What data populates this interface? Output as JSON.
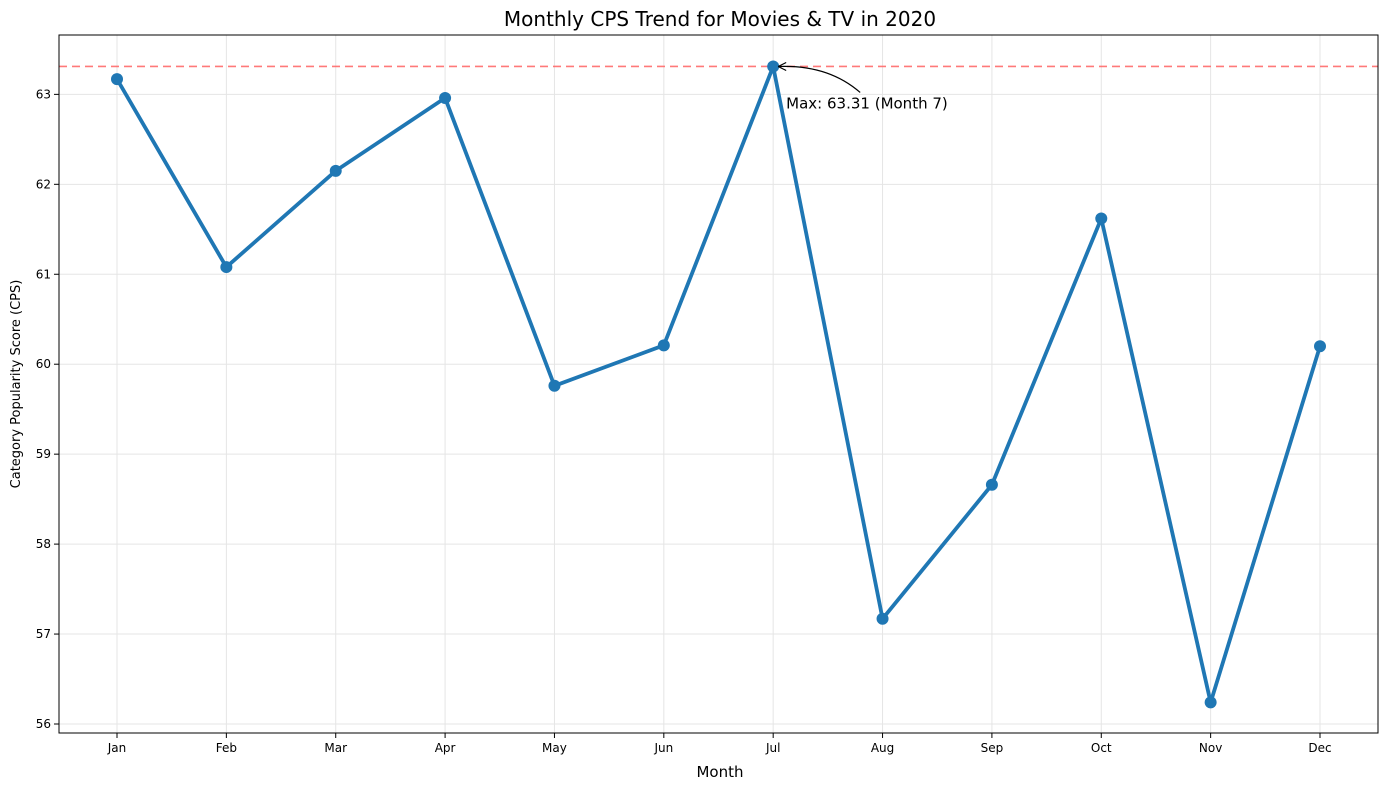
{
  "chart_data": {
    "type": "line",
    "title": "Monthly CPS Trend for Movies & TV in 2020",
    "xlabel": "Month",
    "ylabel": "Category Popularity Score (CPS)",
    "categories": [
      "Jan",
      "Feb",
      "Mar",
      "Apr",
      "May",
      "Jun",
      "Jul",
      "Aug",
      "Sep",
      "Oct",
      "Nov",
      "Dec"
    ],
    "series": [
      {
        "values": [
          63.17,
          61.08,
          62.15,
          62.96,
          59.76,
          60.21,
          63.31,
          57.17,
          58.66,
          61.62,
          56.24,
          60.2
        ]
      }
    ],
    "ylim": [
      55.9,
      63.66
    ],
    "yticks": [
      56,
      57,
      58,
      59,
      60,
      61,
      62,
      63
    ],
    "grid": true,
    "reference_line": {
      "value": 63.31,
      "style": "dashed",
      "color": "#ff6b6b"
    },
    "annotation": {
      "text": "Max: 63.31 (Month 7)",
      "target_category": "Jul",
      "target_value": 63.31
    },
    "colors": {
      "series": "#1f77b4",
      "reference": "#ff6b6b",
      "grid": "#e5e5e5",
      "axes": "#000000"
    }
  }
}
